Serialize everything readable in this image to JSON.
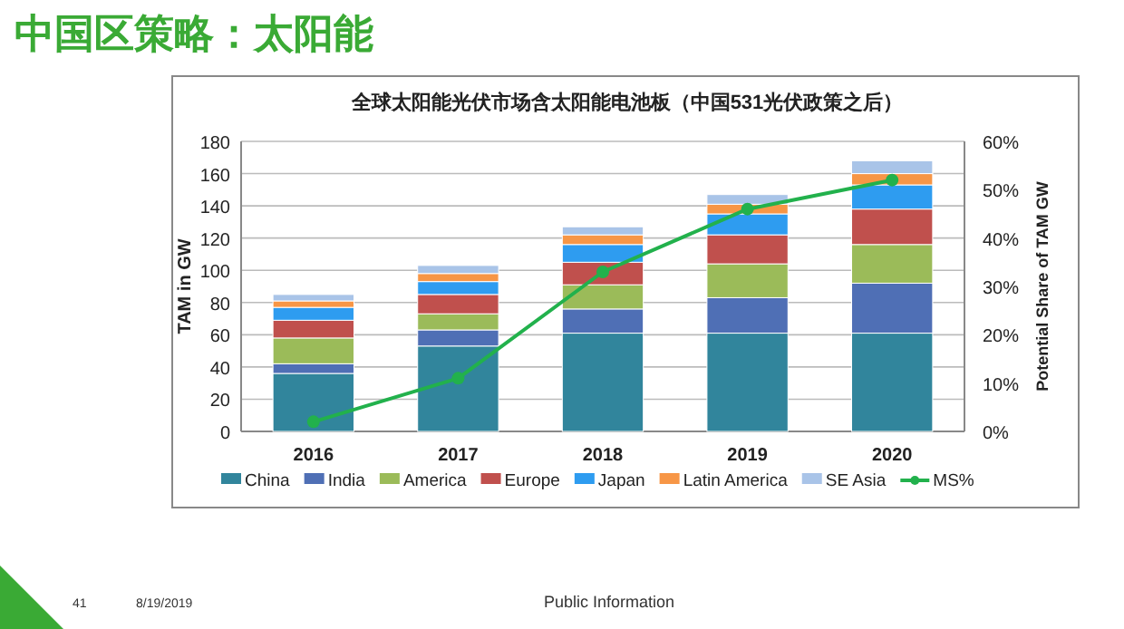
{
  "chart_data": {
    "type": "bar",
    "title": "中国区策略：太阳能",
    "subtitle": "全球太阳能光伏市场含太阳能电池板（中国531光伏政策之后）",
    "ylabel": "TAM in GW",
    "y2label": "Potential Share of TAM GW",
    "categories": [
      "2016",
      "2017",
      "2018",
      "2019",
      "2020"
    ],
    "stacked": true,
    "series": [
      {
        "name": "China",
        "color": "#31859c",
        "values": [
          36,
          53,
          61,
          61,
          61
        ]
      },
      {
        "name": "India",
        "color": "#4f6fb5",
        "values": [
          6,
          10,
          15,
          22,
          31
        ]
      },
      {
        "name": "America",
        "color": "#9bbb59",
        "values": [
          16,
          10,
          15,
          21,
          24
        ]
      },
      {
        "name": "Europe",
        "color": "#c0504d",
        "values": [
          11,
          12,
          14,
          18,
          22
        ]
      },
      {
        "name": "Japan",
        "color": "#2e9cf0",
        "values": [
          8,
          8,
          11,
          13,
          15
        ]
      },
      {
        "name": "Latin America",
        "color": "#f79646",
        "values": [
          4,
          5,
          6,
          6,
          7
        ]
      },
      {
        "name": "SE Asia",
        "color": "#a9c4e8",
        "values": [
          4,
          5,
          5,
          6,
          8
        ]
      },
      {
        "name": "MS%",
        "color": "#22b14c",
        "type": "line",
        "axis": "y2",
        "marker": "circle",
        "values": [
          2,
          11,
          33,
          46,
          52
        ]
      }
    ],
    "ylim": [
      0,
      180
    ],
    "yticks": [
      0,
      20,
      40,
      60,
      80,
      100,
      120,
      140,
      160,
      180
    ],
    "y2lim": [
      0,
      60
    ],
    "y2ticks": [
      {
        "value": 0,
        "label": "0%"
      },
      {
        "value": 10,
        "label": "10%"
      },
      {
        "value": 20,
        "label": "20%"
      },
      {
        "value": 30,
        "label": "30%"
      },
      {
        "value": 40,
        "label": "40%"
      },
      {
        "value": 50,
        "label": "50%"
      },
      {
        "value": 60,
        "label": "60%"
      }
    ],
    "grid": "y",
    "legend": "bottom",
    "annotations": [
      "41",
      "8/19/2019",
      "Public Information"
    ]
  }
}
